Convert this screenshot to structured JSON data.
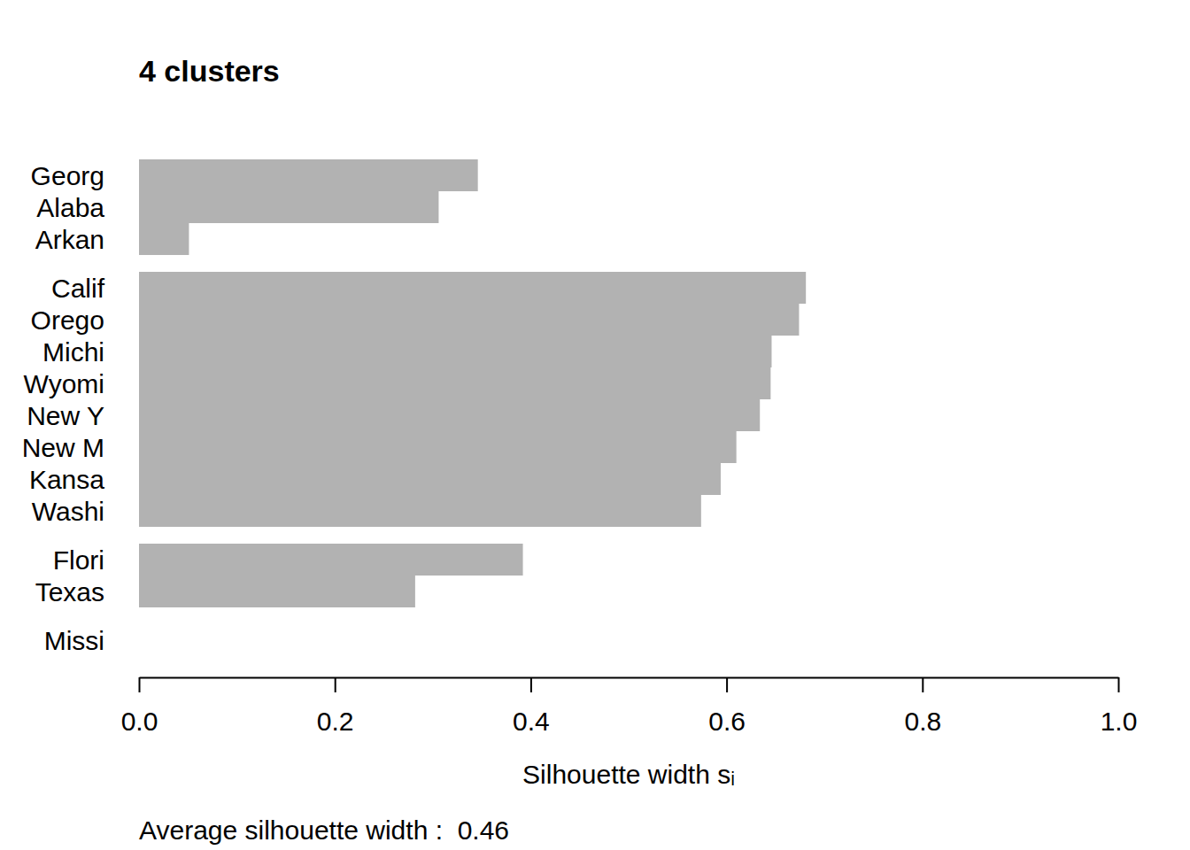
{
  "chart_data": {
    "type": "bar",
    "orientation": "horizontal",
    "title": "4 clusters",
    "x_label": "Silhouette width sᵢ",
    "note": "Average silhouette width :  0.46",
    "categories": [
      "Georg",
      "Alaba",
      "Arkan",
      "Calif",
      "Orego",
      "Michi",
      "Wyomi",
      "New Y",
      "New M",
      "Kansa",
      "Washi",
      "Flori",
      "Texas",
      "Missi"
    ],
    "values": [
      0.346,
      0.306,
      0.051,
      0.681,
      0.674,
      0.646,
      0.645,
      0.634,
      0.61,
      0.594,
      0.574,
      0.392,
      0.282,
      0
    ],
    "cluster": [
      1,
      1,
      1,
      2,
      2,
      2,
      2,
      2,
      2,
      2,
      2,
      3,
      3,
      4
    ],
    "color": "#b2b2b2",
    "xlim": [
      0,
      1
    ],
    "xticks": [
      {
        "value": 0,
        "label": "0.0"
      },
      0.2,
      0.4,
      0.6,
      0.8,
      {
        "value": 1,
        "label": "1.0"
      }
    ],
    "grid": false
  }
}
